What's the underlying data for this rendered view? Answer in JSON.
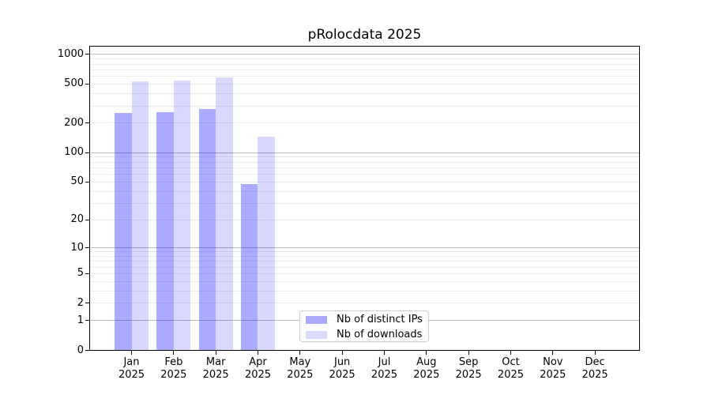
{
  "title": "pRolocdata 2025",
  "chart_data": {
    "type": "bar",
    "title": "pRolocdata 2025",
    "categories": [
      "Jan 2025",
      "Feb 2025",
      "Mar 2025",
      "Apr 2025",
      "May 2025",
      "Jun 2025",
      "Jul 2025",
      "Aug 2025",
      "Sep 2025",
      "Oct 2025",
      "Nov 2025",
      "Dec 2025"
    ],
    "series": [
      {
        "name": "Nb of distinct IPs",
        "color": "#0000ff",
        "alpha": 0.33,
        "solid_color": "#aaaaf9",
        "values": [
          255,
          258,
          280,
          48,
          null,
          null,
          null,
          null,
          null,
          null,
          null,
          null
        ]
      },
      {
        "name": "Nb of downloads",
        "color": "#0000ff",
        "alpha": 0.15,
        "solid_color": "#d9d9f9",
        "values": [
          530,
          540,
          590,
          145,
          null,
          null,
          null,
          null,
          null,
          null,
          null,
          null
        ]
      }
    ],
    "xlabel": "",
    "ylabel": "",
    "yscale": "log1p",
    "ylim": [
      0,
      1224
    ],
    "y_tick_values": [
      1000,
      500,
      200,
      100,
      50,
      20,
      10,
      5,
      2,
      1,
      0
    ],
    "y_tick_labels": [
      "1000",
      "500",
      "200",
      "100",
      "50",
      "20",
      "10",
      "5",
      "2",
      "1",
      "0"
    ],
    "minor_grid_values": [
      2,
      3,
      4,
      5,
      6,
      7,
      8,
      9,
      20,
      30,
      40,
      50,
      60,
      70,
      80,
      90,
      200,
      300,
      400,
      500,
      600,
      700,
      800,
      900
    ],
    "major_grid_values": [
      1,
      10,
      100,
      1000
    ],
    "grid": "horizontal",
    "legend_position": "lower-center-inside"
  },
  "x_axis": {
    "tick_labels": [
      {
        "month": "Jan",
        "year": "2025"
      },
      {
        "month": "Feb",
        "year": "2025"
      },
      {
        "month": "Mar",
        "year": "2025"
      },
      {
        "month": "Apr",
        "year": "2025"
      },
      {
        "month": "May",
        "year": "2025"
      },
      {
        "month": "Jun",
        "year": "2025"
      },
      {
        "month": "Jul",
        "year": "2025"
      },
      {
        "month": "Aug",
        "year": "2025"
      },
      {
        "month": "Sep",
        "year": "2025"
      },
      {
        "month": "Oct",
        "year": "2025"
      },
      {
        "month": "Nov",
        "year": "2025"
      },
      {
        "month": "Dec",
        "year": "2025"
      }
    ]
  },
  "legend": {
    "items": [
      {
        "label": "Nb of distinct IPs",
        "swatch_color": "#aaaaf9"
      },
      {
        "label": "Nb of downloads",
        "swatch_color": "#d9d9f9"
      }
    ]
  },
  "colors": {
    "background": "#ffffff",
    "axis": "#000000",
    "text": "#000000",
    "minor_grid": "#ececec",
    "major_grid": "#b9b9b9"
  }
}
